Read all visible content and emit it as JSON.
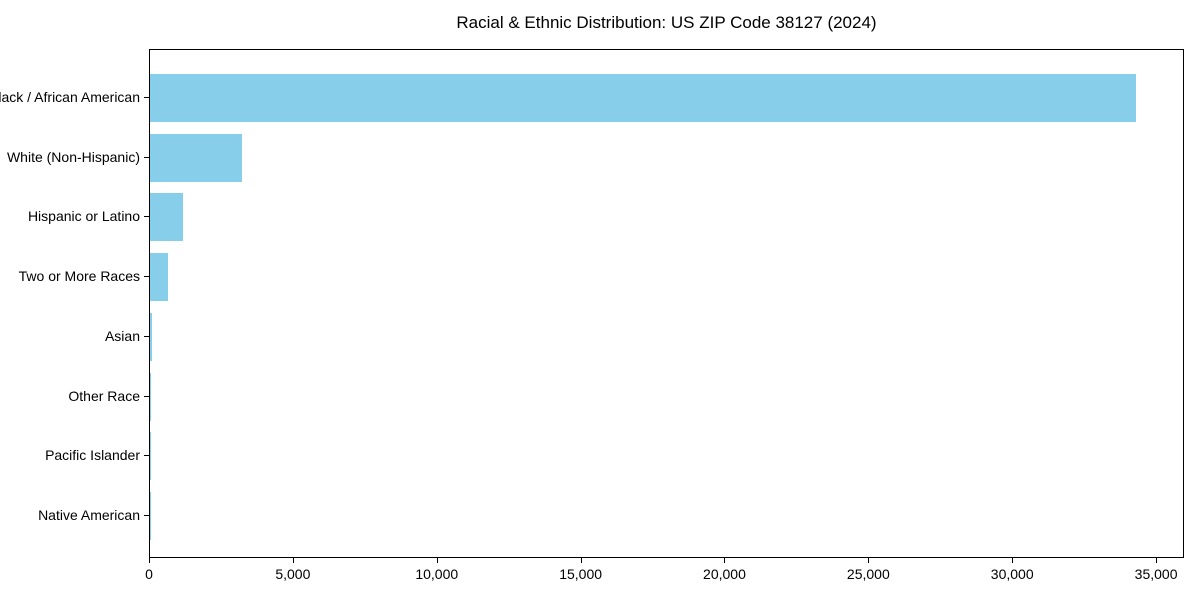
{
  "chart_data": {
    "type": "bar",
    "orientation": "horizontal",
    "title": "Racial & Ethnic Distribution: US ZIP Code 38127 (2024)",
    "categories": [
      "Black / African American",
      "White (Non-Hispanic)",
      "Hispanic or Latino",
      "Two or More Races",
      "Asian",
      "Other Race",
      "Pacific Islander",
      "Native American"
    ],
    "values": [
      34270,
      3195,
      1150,
      625,
      60,
      45,
      15,
      8
    ],
    "xlabel": "",
    "ylabel": "",
    "xlim": [
      0,
      35970
    ],
    "x_ticks": [
      0,
      5000,
      10000,
      15000,
      20000,
      25000,
      30000,
      35000
    ],
    "x_tick_labels": [
      "0",
      "5,000",
      "10,000",
      "15,000",
      "20,000",
      "25,000",
      "30,000",
      "35,000"
    ],
    "bar_color": "#87CEEB",
    "axis_color": "#000000",
    "grid": false,
    "legend": "none"
  }
}
